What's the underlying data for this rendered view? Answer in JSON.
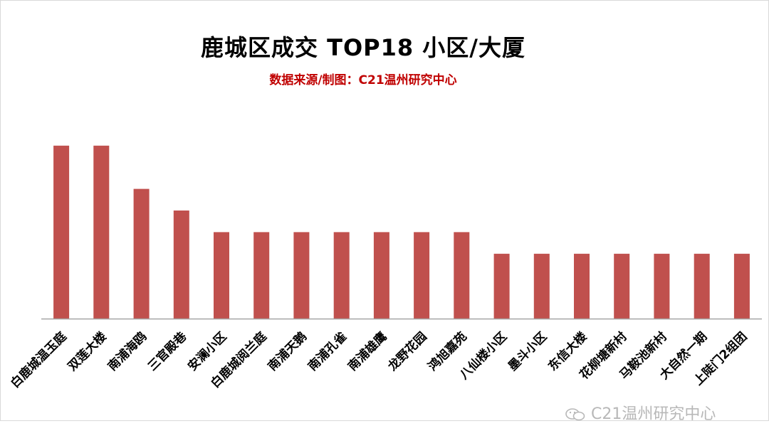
{
  "chart_data": {
    "type": "bar",
    "title": "鹿城区成交 TOP18 小区/大厦",
    "subtitle": "数据来源/制图：C21温州研究中心",
    "categories": [
      "白鹿城温玉庭",
      "双莲大楼",
      "南浦海鸥",
      "三官殿巷",
      "安澜小区",
      "白鹿城阅兰庭",
      "南浦天鹅",
      "南浦孔雀",
      "南浦雄鹰",
      "龙野花园",
      "鸿旭嘉苑",
      "八仙楼小区",
      "墨斗小区",
      "东信大楼",
      "花柳塘新村",
      "马鞍池新村",
      "大自然一期",
      "上陡门2组团"
    ],
    "values": [
      8,
      8,
      6,
      5,
      4,
      4,
      4,
      4,
      4,
      4,
      4,
      3,
      3,
      3,
      3,
      3,
      3,
      3
    ],
    "ylim": [
      0,
      10
    ],
    "grid": false,
    "legend": "none",
    "bar_color": "#c0504d",
    "axis_color": "#a6a6a6"
  },
  "watermark": {
    "text": "C21温州研究中心",
    "icon": "wechat-icon"
  }
}
